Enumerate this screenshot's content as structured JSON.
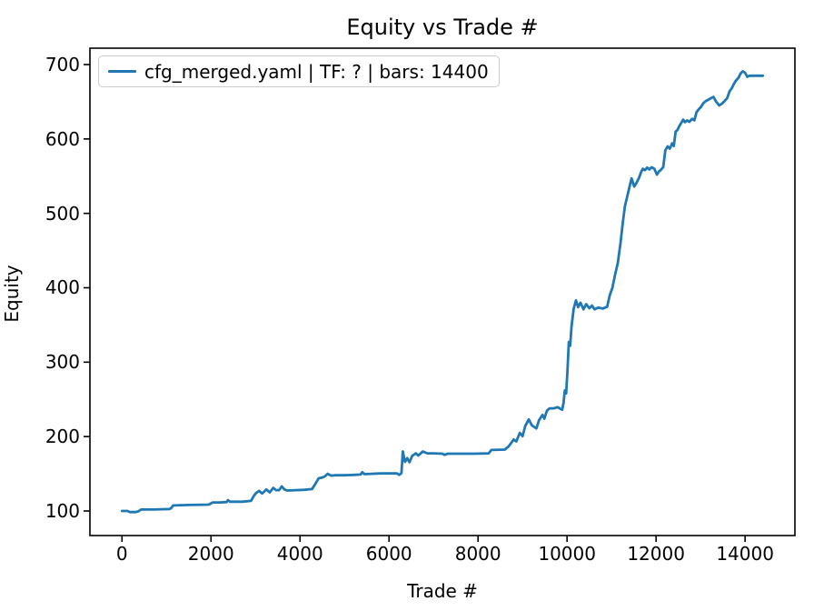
{
  "figure": {
    "background": "#ffffff",
    "spine_color": "#000000"
  },
  "chart_data": {
    "type": "line",
    "title": "Equity vs Trade #",
    "xlabel": "Trade #",
    "ylabel": "Equity",
    "xlim": [
      -720,
      15120
    ],
    "ylim": [
      67,
      722
    ],
    "grid": false,
    "legend_position": "upper left",
    "xticks": {
      "values": [
        0,
        2000,
        4000,
        6000,
        8000,
        10000,
        12000,
        14000
      ],
      "labels": [
        "0",
        "2000",
        "4000",
        "6000",
        "8000",
        "10000",
        "12000",
        "14000"
      ]
    },
    "yticks": {
      "values": [
        100,
        200,
        300,
        400,
        500,
        600,
        700
      ],
      "labels": [
        "100",
        "200",
        "300",
        "400",
        "500",
        "600",
        "700"
      ]
    },
    "series": [
      {
        "name": "cfg_merged.yaml | TF: ? | bars: 14400",
        "color": "#1f77b4",
        "line_width": 2.8,
        "points": [
          [
            0,
            100
          ],
          [
            120,
            100
          ],
          [
            180,
            98.5
          ],
          [
            300,
            98.5
          ],
          [
            370,
            99.5
          ],
          [
            430,
            102
          ],
          [
            700,
            102
          ],
          [
            1060,
            102.5
          ],
          [
            1100,
            103.5
          ],
          [
            1150,
            107.5
          ],
          [
            1500,
            108
          ],
          [
            1950,
            108.5
          ],
          [
            2010,
            110.5
          ],
          [
            2040,
            111.5
          ],
          [
            2200,
            111.5
          ],
          [
            2350,
            112
          ],
          [
            2380,
            114.5
          ],
          [
            2430,
            112.5
          ],
          [
            2700,
            112.5
          ],
          [
            2900,
            113.5
          ],
          [
            2960,
            120
          ],
          [
            3010,
            124
          ],
          [
            3080,
            127
          ],
          [
            3150,
            123.5
          ],
          [
            3240,
            129
          ],
          [
            3320,
            125
          ],
          [
            3400,
            131
          ],
          [
            3460,
            128
          ],
          [
            3530,
            128
          ],
          [
            3590,
            133
          ],
          [
            3650,
            129
          ],
          [
            3710,
            127.5
          ],
          [
            3900,
            128
          ],
          [
            4100,
            128.5
          ],
          [
            4270,
            129.5
          ],
          [
            4350,
            137
          ],
          [
            4420,
            144
          ],
          [
            4500,
            145
          ],
          [
            4560,
            146.5
          ],
          [
            4620,
            150
          ],
          [
            4700,
            147.5
          ],
          [
            4800,
            148
          ],
          [
            5000,
            148
          ],
          [
            5200,
            148.5
          ],
          [
            5360,
            149
          ],
          [
            5400,
            152
          ],
          [
            5450,
            149.5
          ],
          [
            5600,
            150
          ],
          [
            5800,
            150.5
          ],
          [
            6000,
            150.5
          ],
          [
            6180,
            150.5
          ],
          [
            6230,
            148.5
          ],
          [
            6280,
            151
          ],
          [
            6310,
            180
          ],
          [
            6360,
            166
          ],
          [
            6410,
            171
          ],
          [
            6460,
            165.5
          ],
          [
            6520,
            174
          ],
          [
            6600,
            177.5
          ],
          [
            6660,
            174.5
          ],
          [
            6760,
            180
          ],
          [
            6860,
            177.5
          ],
          [
            7000,
            177.5
          ],
          [
            7200,
            177
          ],
          [
            7250,
            175.5
          ],
          [
            7320,
            177
          ],
          [
            7600,
            177
          ],
          [
            7900,
            177
          ],
          [
            8240,
            177.5
          ],
          [
            8300,
            182
          ],
          [
            8600,
            182.5
          ],
          [
            8690,
            187
          ],
          [
            8800,
            196
          ],
          [
            8860,
            193.5
          ],
          [
            8940,
            205
          ],
          [
            9000,
            200.5
          ],
          [
            9060,
            214
          ],
          [
            9140,
            223
          ],
          [
            9210,
            215
          ],
          [
            9310,
            211
          ],
          [
            9370,
            222
          ],
          [
            9450,
            229
          ],
          [
            9490,
            224
          ],
          [
            9550,
            235
          ],
          [
            9610,
            238
          ],
          [
            9700,
            238
          ],
          [
            9790,
            239.5
          ],
          [
            9860,
            237
          ],
          [
            9890,
            236
          ],
          [
            9920,
            245
          ],
          [
            9950,
            262
          ],
          [
            9980,
            258
          ],
          [
            10010,
            290
          ],
          [
            10040,
            327
          ],
          [
            10070,
            322
          ],
          [
            10100,
            348
          ],
          [
            10150,
            372
          ],
          [
            10200,
            383
          ],
          [
            10250,
            374
          ],
          [
            10300,
            380
          ],
          [
            10370,
            371
          ],
          [
            10430,
            378
          ],
          [
            10500,
            372.5
          ],
          [
            10560,
            376
          ],
          [
            10620,
            371
          ],
          [
            10700,
            373.5
          ],
          [
            10800,
            372
          ],
          [
            10900,
            374.5
          ],
          [
            10960,
            390
          ],
          [
            11020,
            400
          ],
          [
            11080,
            418
          ],
          [
            11140,
            433
          ],
          [
            11200,
            460
          ],
          [
            11250,
            486
          ],
          [
            11300,
            510
          ],
          [
            11350,
            522
          ],
          [
            11400,
            535
          ],
          [
            11450,
            547
          ],
          [
            11510,
            536
          ],
          [
            11560,
            541
          ],
          [
            11620,
            548
          ],
          [
            11660,
            555
          ],
          [
            11700,
            560
          ],
          [
            11750,
            558
          ],
          [
            11800,
            561.5
          ],
          [
            11850,
            559
          ],
          [
            11900,
            562
          ],
          [
            11960,
            560
          ],
          [
            12020,
            552
          ],
          [
            12060,
            556
          ],
          [
            12110,
            558.5
          ],
          [
            12160,
            562
          ],
          [
            12210,
            585
          ],
          [
            12260,
            590
          ],
          [
            12310,
            587
          ],
          [
            12360,
            594
          ],
          [
            12400,
            590.5
          ],
          [
            12440,
            610
          ],
          [
            12480,
            612
          ],
          [
            12520,
            617
          ],
          [
            12570,
            622
          ],
          [
            12610,
            626
          ],
          [
            12650,
            622.5
          ],
          [
            12700,
            625
          ],
          [
            12750,
            623
          ],
          [
            12810,
            627
          ],
          [
            12860,
            625
          ],
          [
            12910,
            636
          ],
          [
            12960,
            640
          ],
          [
            13010,
            643
          ],
          [
            13060,
            648
          ],
          [
            13120,
            651
          ],
          [
            13180,
            653
          ],
          [
            13240,
            655
          ],
          [
            13290,
            656.5
          ],
          [
            13350,
            650
          ],
          [
            13420,
            645
          ],
          [
            13480,
            647.5
          ],
          [
            13540,
            651
          ],
          [
            13600,
            655
          ],
          [
            13650,
            664
          ],
          [
            13700,
            668
          ],
          [
            13740,
            673
          ],
          [
            13790,
            678
          ],
          [
            13850,
            682
          ],
          [
            13900,
            688
          ],
          [
            13950,
            691
          ],
          [
            14000,
            689
          ],
          [
            14050,
            683.5
          ],
          [
            14100,
            685
          ],
          [
            14250,
            685
          ],
          [
            14400,
            685
          ]
        ]
      }
    ]
  }
}
